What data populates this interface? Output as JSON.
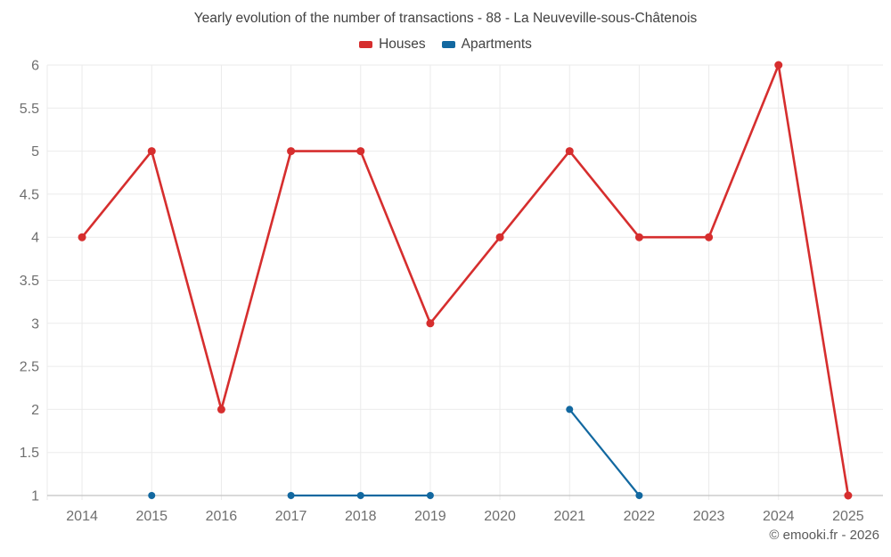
{
  "chart_data": {
    "type": "line",
    "title": "Yearly evolution of the number of transactions - 88 - La Neuveville-sous-Châtenois",
    "categories": [
      "2014",
      "2015",
      "2016",
      "2017",
      "2018",
      "2019",
      "2020",
      "2021",
      "2022",
      "2023",
      "2024",
      "2025"
    ],
    "series": [
      {
        "name": "Houses",
        "color": "#d62e2e",
        "marker_radius": 4.5,
        "line_width": 2.6,
        "values": [
          4,
          5,
          2,
          5,
          5,
          3,
          4,
          5,
          4,
          4,
          6,
          1
        ]
      },
      {
        "name": "Apartments",
        "color": "#1268a0",
        "marker_radius": 4,
        "line_width": 2.2,
        "values": [
          null,
          1,
          null,
          1,
          1,
          1,
          null,
          2,
          1,
          null,
          null,
          null
        ]
      }
    ],
    "xlabel": "",
    "ylabel": "",
    "ylim": [
      1,
      6
    ],
    "ytick_step": 0.5,
    "grid": true,
    "legend_position": "top"
  },
  "watermark": "© emooki.fr - 2026",
  "colors": {
    "houses": "#d62e2e",
    "apartments": "#1268a0",
    "grid": "#ebebeb",
    "axis": "#c2c2c2",
    "tick_label": "#6f6f6f",
    "title_text": "#424242",
    "watermark_text": "#5a5a5a",
    "background": "#ffffff"
  }
}
